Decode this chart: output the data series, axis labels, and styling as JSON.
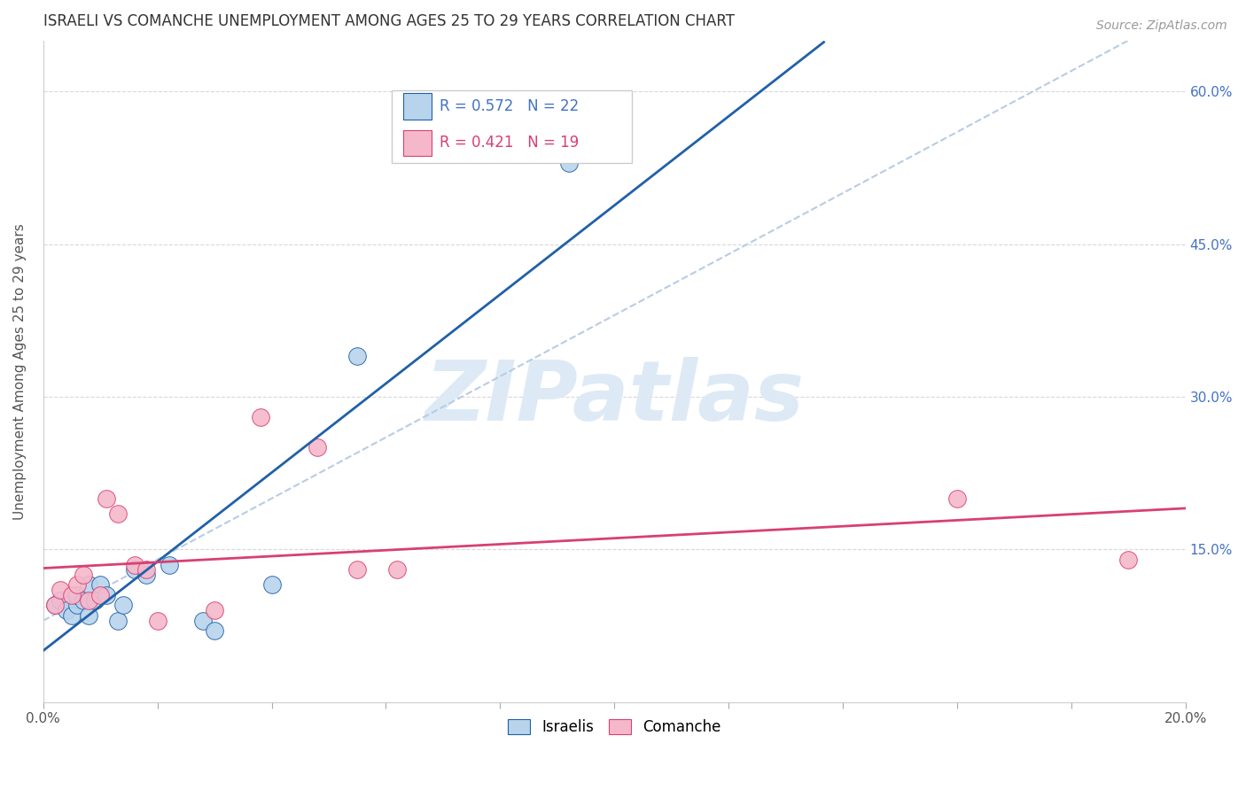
{
  "title": "ISRAELI VS COMANCHE UNEMPLOYMENT AMONG AGES 25 TO 29 YEARS CORRELATION CHART",
  "source": "Source: ZipAtlas.com",
  "ylabel": "Unemployment Among Ages 25 to 29 years",
  "xlabel": "",
  "xlim": [
    0.0,
    0.2
  ],
  "ylim": [
    0.0,
    0.65
  ],
  "x_ticks": [
    0.0,
    0.02,
    0.04,
    0.06,
    0.08,
    0.1,
    0.12,
    0.14,
    0.16,
    0.18,
    0.2
  ],
  "y_ticks": [
    0.0,
    0.15,
    0.3,
    0.45,
    0.6
  ],
  "y_tick_labels": [
    "15.0%",
    "30.0%",
    "45.0%",
    "60.0%"
  ],
  "x_tick_labels": [
    "0.0%",
    "",
    "",
    "",
    "",
    "",
    "",
    "",
    "",
    "",
    "20.0%"
  ],
  "israelis_x": [
    0.002,
    0.003,
    0.004,
    0.005,
    0.006,
    0.006,
    0.007,
    0.008,
    0.008,
    0.009,
    0.01,
    0.011,
    0.013,
    0.014,
    0.016,
    0.018,
    0.022,
    0.028,
    0.03,
    0.04,
    0.055,
    0.092
  ],
  "israelis_y": [
    0.095,
    0.1,
    0.09,
    0.085,
    0.095,
    0.105,
    0.1,
    0.085,
    0.115,
    0.1,
    0.115,
    0.105,
    0.08,
    0.095,
    0.13,
    0.125,
    0.135,
    0.08,
    0.07,
    0.115,
    0.34,
    0.53
  ],
  "comanche_x": [
    0.002,
    0.003,
    0.005,
    0.006,
    0.007,
    0.008,
    0.01,
    0.011,
    0.013,
    0.016,
    0.018,
    0.02,
    0.03,
    0.038,
    0.048,
    0.055,
    0.062,
    0.16,
    0.19
  ],
  "comanche_y": [
    0.095,
    0.11,
    0.105,
    0.115,
    0.125,
    0.1,
    0.105,
    0.2,
    0.185,
    0.135,
    0.13,
    0.08,
    0.09,
    0.28,
    0.25,
    0.13,
    0.13,
    0.2,
    0.14
  ],
  "israelis_R": 0.572,
  "israelis_N": 22,
  "comanche_R": 0.421,
  "comanche_N": 19,
  "israeli_color": "#b8d4ec",
  "comanche_color": "#f5b8cb",
  "israeli_line_color": "#2060a8",
  "comanche_line_color": "#d84070",
  "diag_line_color": "#b8cce4",
  "background_color": "#ffffff",
  "watermark_color": "#ddeaf6"
}
